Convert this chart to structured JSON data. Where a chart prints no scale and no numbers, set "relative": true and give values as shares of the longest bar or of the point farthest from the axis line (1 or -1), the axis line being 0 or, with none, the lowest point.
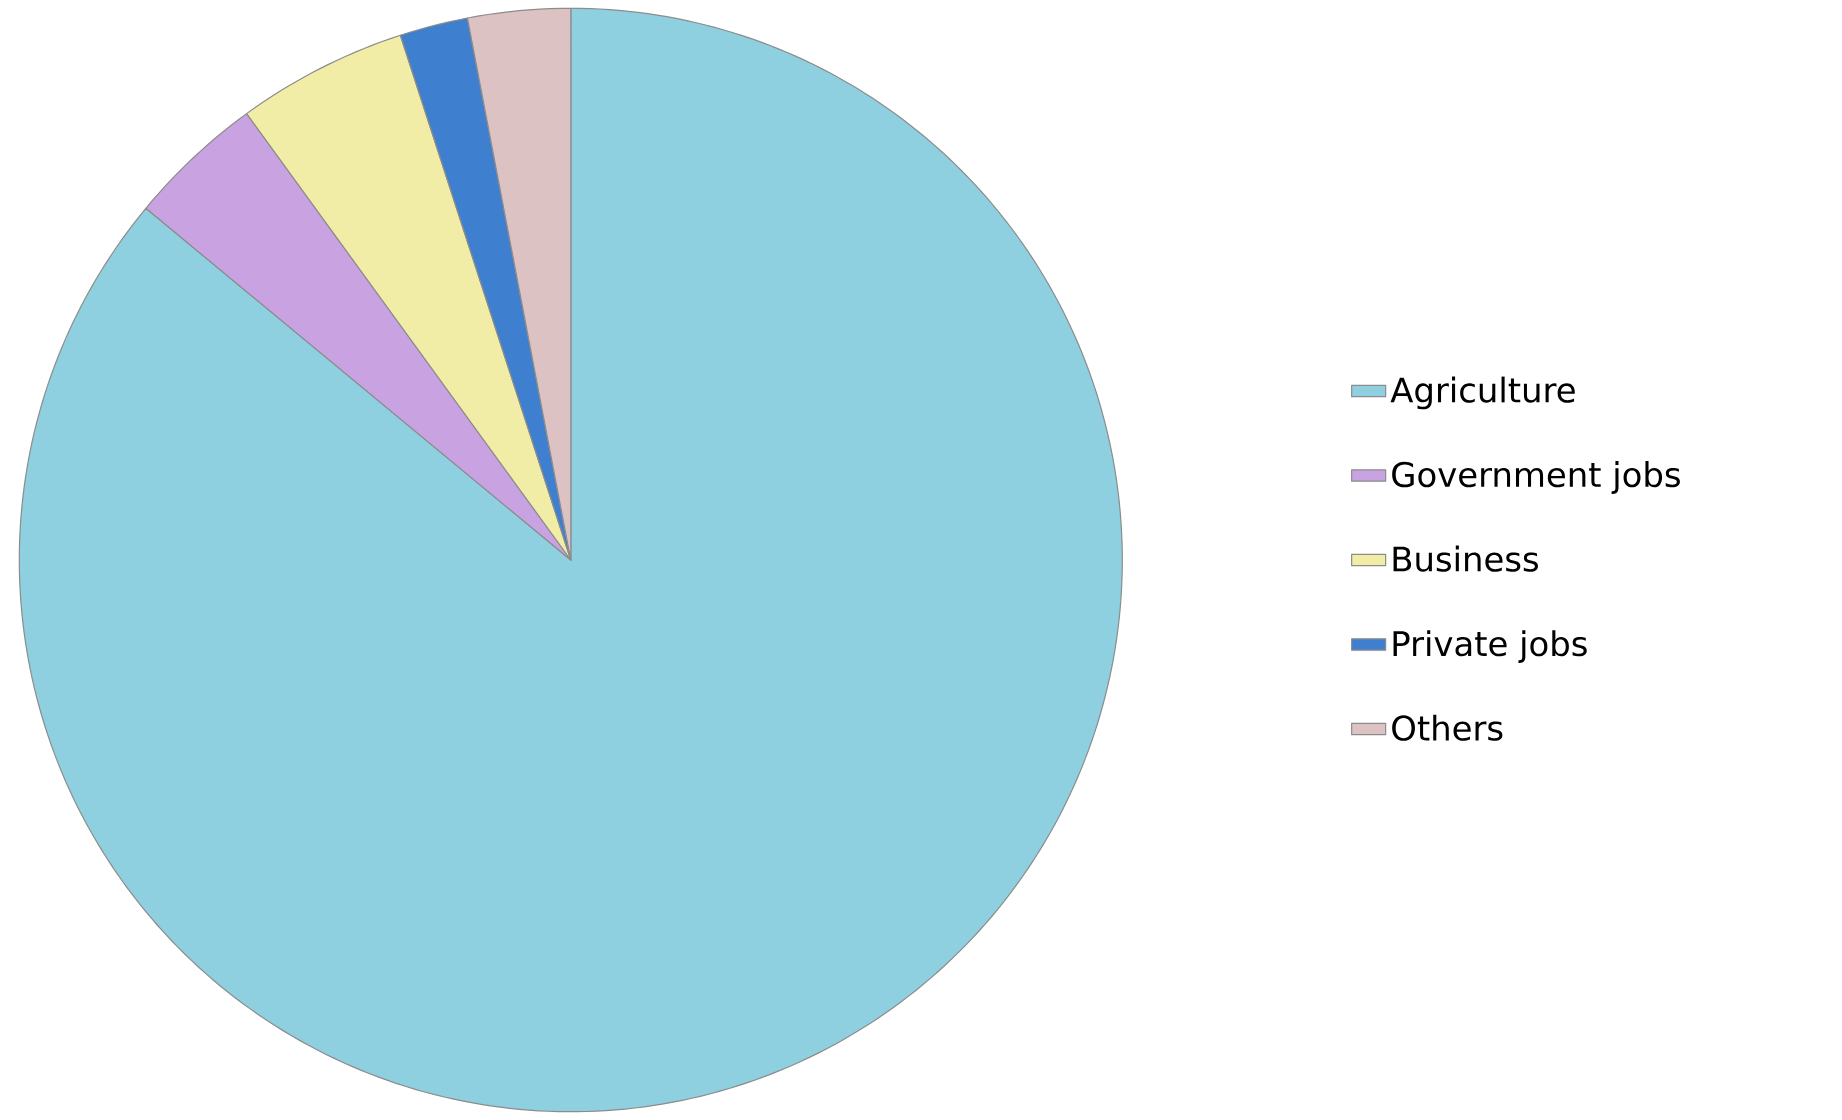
{
  "chart_data": {
    "type": "pie",
    "relative": true,
    "categories": [
      "Agriculture",
      "Government jobs",
      "Business",
      "Private jobs",
      "Others"
    ],
    "values": [
      86,
      4,
      5,
      2,
      3
    ],
    "colors": [
      "#8ecfe0",
      "#c9a2e2",
      "#f2eda6",
      "#3f7fd0",
      "#dcc2c2"
    ],
    "legend": "right"
  }
}
